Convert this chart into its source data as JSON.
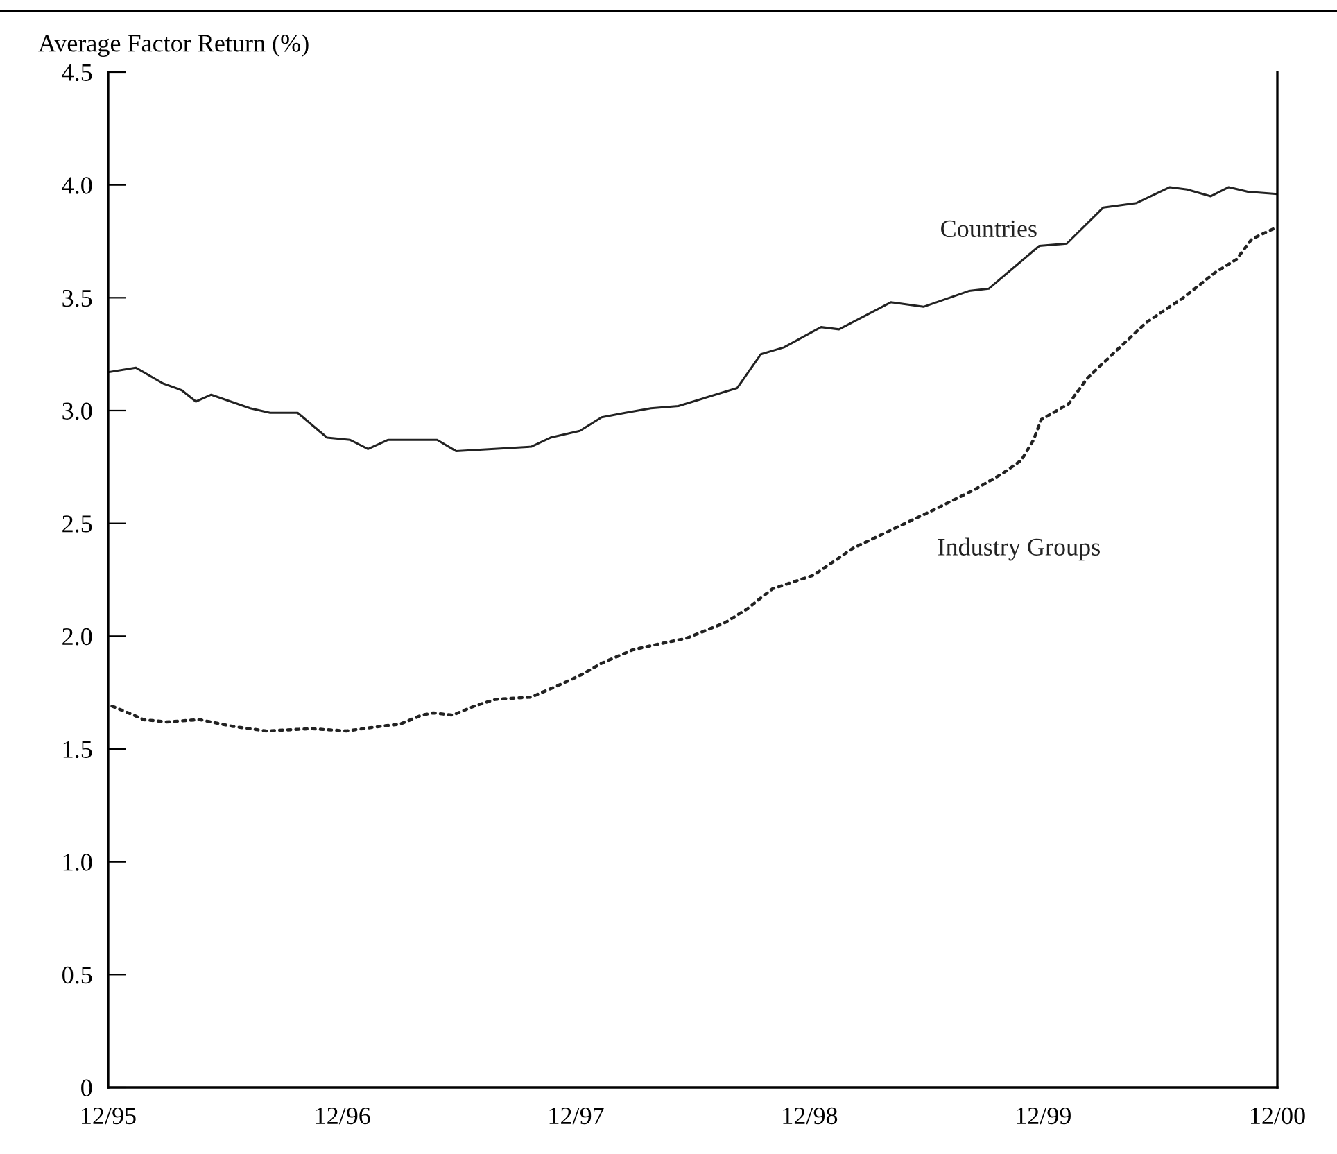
{
  "chart_data": {
    "type": "line",
    "ylabel": "Average Factor Return (%)",
    "xlim": [
      "1995-12-01",
      "2000-12-01"
    ],
    "xticks": [
      {
        "value": "1995-12-01",
        "label": "12/95"
      },
      {
        "value": "1996-12-01",
        "label": "12/96"
      },
      {
        "value": "1997-12-01",
        "label": "12/97"
      },
      {
        "value": "1998-12-01",
        "label": "12/98"
      },
      {
        "value": "1999-12-01",
        "label": "12/99"
      },
      {
        "value": "2000-12-01",
        "label": "12/00"
      }
    ],
    "ylim": [
      0,
      4.5
    ],
    "yticks": [
      {
        "value": 0,
        "label": "0"
      },
      {
        "value": 0.5,
        "label": "0.5"
      },
      {
        "value": 1,
        "label": "1.0"
      },
      {
        "value": 1.5,
        "label": "1.5"
      },
      {
        "value": 2,
        "label": "2.0"
      },
      {
        "value": 2.5,
        "label": "2.5"
      },
      {
        "value": 3,
        "label": "3.0"
      },
      {
        "value": 3.5,
        "label": "3.5"
      },
      {
        "value": 4,
        "label": "4.0"
      },
      {
        "value": 4.5,
        "label": "4.5"
      }
    ],
    "grid": false,
    "legend": false,
    "series": [
      {
        "name": "Countries",
        "color": "#222222",
        "line_style": "solid",
        "x": [
          "1995-12-01",
          "1996-01-13",
          "1996-02-25",
          "1996-03-25",
          "1996-04-16",
          "1996-05-10",
          "1996-07-10",
          "1996-08-10",
          "1996-09-22",
          "1996-11-07",
          "1996-12-13",
          "1997-01-10",
          "1997-02-10",
          "1997-04-28",
          "1997-05-28",
          "1997-09-22",
          "1997-10-22",
          "1997-12-07",
          "1998-01-10",
          "1998-02-16",
          "1998-03-28",
          "1998-05-10",
          "1998-08-10",
          "1998-09-16",
          "1998-10-22",
          "1998-12-19",
          "1999-01-16",
          "1999-04-07",
          "1999-05-28",
          "1999-08-07",
          "1999-09-07",
          "1999-11-25",
          "2000-01-07",
          "2000-03-04",
          "2000-04-25",
          "2000-06-16",
          "2000-07-13",
          "2000-08-19",
          "2000-09-16",
          "2000-10-16",
          "2000-12-01"
        ],
        "values": [
          3.17,
          3.19,
          3.12,
          3.09,
          3.04,
          3.07,
          3.01,
          2.99,
          2.99,
          2.88,
          2.87,
          2.83,
          2.87,
          2.87,
          2.82,
          2.84,
          2.88,
          2.91,
          2.97,
          2.99,
          3.01,
          3.02,
          3.1,
          3.25,
          3.28,
          3.37,
          3.36,
          3.48,
          3.46,
          3.53,
          3.54,
          3.73,
          3.74,
          3.9,
          3.92,
          3.99,
          3.98,
          3.95,
          3.99,
          3.97,
          3.96
        ]
      },
      {
        "name": "Industry Groups",
        "color": "#222222",
        "line_style": "dotted",
        "x": [
          "1995-12-07",
          "1996-01-10",
          "1996-01-25",
          "1996-03-01",
          "1996-04-22",
          "1996-06-13",
          "1996-08-04",
          "1996-10-13",
          "1996-12-07",
          "1997-01-28",
          "1997-03-01",
          "1997-04-04",
          "1997-04-22",
          "1997-05-22",
          "1997-06-25",
          "1997-07-28",
          "1997-09-22",
          "1997-11-10",
          "1997-12-10",
          "1998-01-10",
          "1998-02-28",
          "1998-04-01",
          "1998-05-22",
          "1998-07-22",
          "1998-08-25",
          "1998-10-04",
          "1998-12-07",
          "1999-02-07",
          "1999-04-07",
          "1999-06-13",
          "1999-08-16",
          "1999-09-28",
          "1999-10-28",
          "1999-11-16",
          "1999-11-28",
          "2000-01-10",
          "2000-02-07",
          "2000-02-25",
          "2000-05-10",
          "2000-07-07",
          "2000-08-25",
          "2000-09-28",
          "2000-10-22",
          "2000-11-28"
        ],
        "values": [
          1.69,
          1.65,
          1.63,
          1.62,
          1.63,
          1.6,
          1.58,
          1.59,
          1.58,
          1.6,
          1.61,
          1.65,
          1.66,
          1.65,
          1.69,
          1.72,
          1.73,
          1.79,
          1.83,
          1.88,
          1.94,
          1.96,
          1.99,
          2.06,
          2.12,
          2.21,
          2.27,
          2.39,
          2.47,
          2.56,
          2.65,
          2.72,
          2.78,
          2.87,
          2.96,
          3.03,
          3.14,
          3.19,
          3.39,
          3.5,
          3.61,
          3.67,
          3.76,
          3.81
        ]
      }
    ]
  }
}
